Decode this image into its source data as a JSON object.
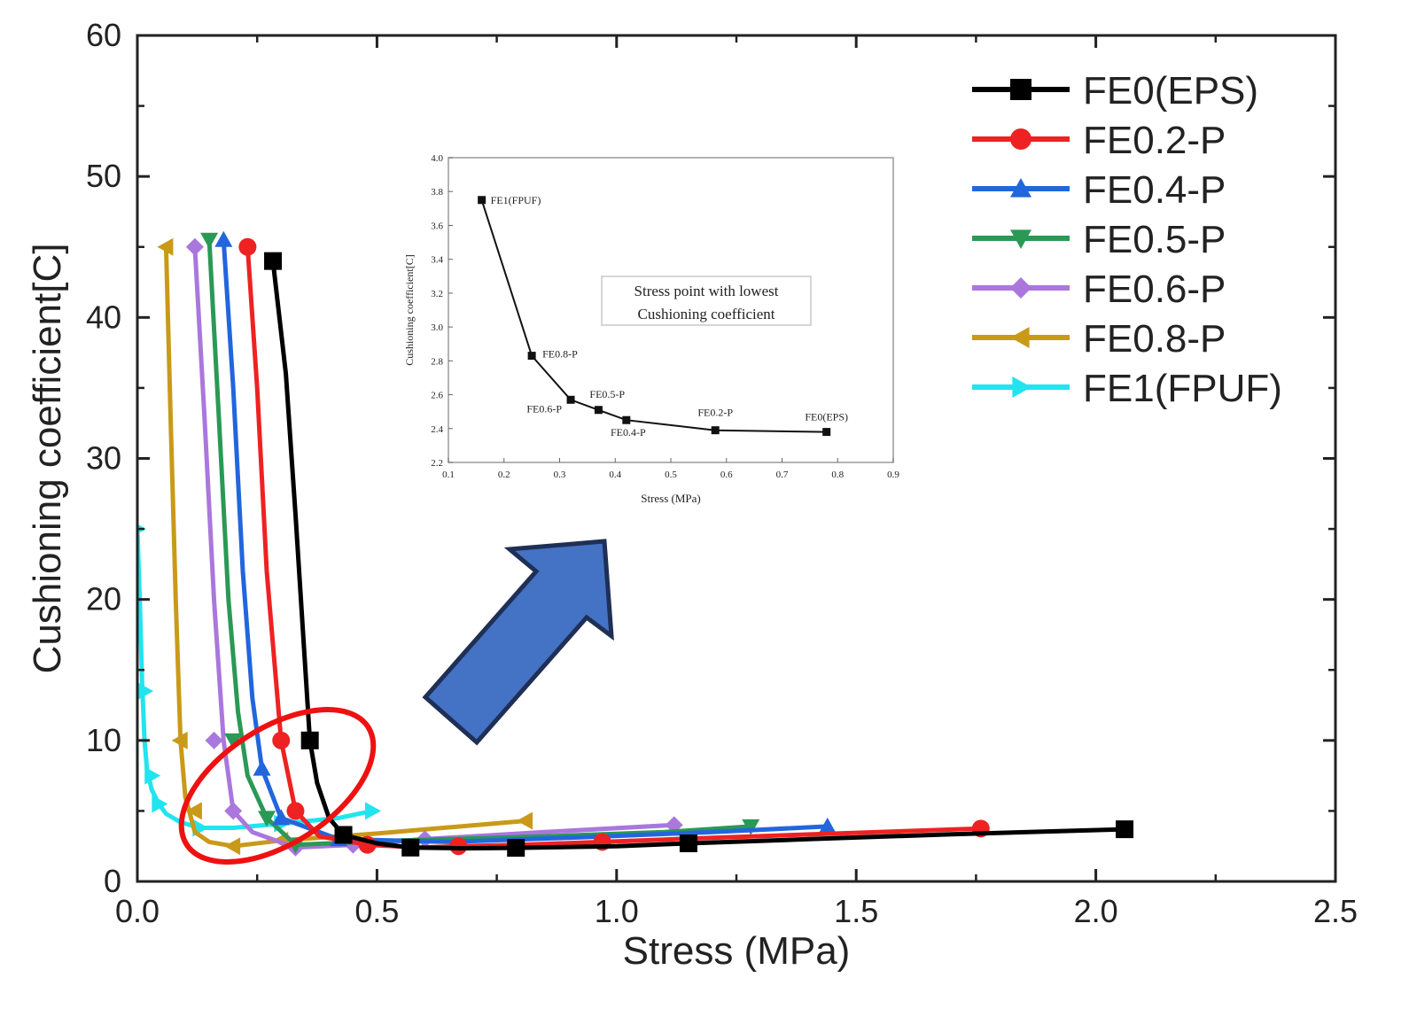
{
  "chart_data": [
    {
      "type": "line",
      "title": "",
      "xlabel": "Stress (MPa)",
      "ylabel": "Cushioning coefficient[C]",
      "xlim": [
        0.0,
        2.5
      ],
      "ylim": [
        0,
        60
      ],
      "xticks": [
        0.0,
        0.5,
        1.0,
        1.5,
        2.0,
        2.5
      ],
      "xtick_labels": [
        "0.0",
        "0.5",
        "1.0",
        "1.5",
        "2.0",
        "2.5"
      ],
      "yticks": [
        0,
        10,
        20,
        30,
        40,
        50,
        60
      ],
      "ytick_labels": [
        "0",
        "10",
        "20",
        "30",
        "40",
        "50",
        "60"
      ],
      "legend_position": "top-right",
      "series": [
        {
          "name": "FE0(EPS)",
          "color": "#000000",
          "marker": "square",
          "x": [
            0.283,
            0.31,
            0.33,
            0.345,
            0.36,
            0.375,
            0.4,
            0.43,
            0.5,
            0.57,
            0.68,
            0.79,
            1.0,
            1.15,
            1.4,
            1.7,
            2.06
          ],
          "y": [
            44,
            36,
            26,
            18,
            10,
            7,
            4.5,
            3.3,
            2.7,
            2.4,
            2.35,
            2.38,
            2.5,
            2.7,
            3.0,
            3.35,
            3.7
          ],
          "marker_x": [
            0.283,
            0.36,
            0.43,
            0.57,
            0.79,
            1.15,
            2.06
          ],
          "marker_y": [
            44,
            10,
            3.3,
            2.4,
            2.38,
            2.7,
            3.7
          ]
        },
        {
          "name": "FE0.2-P",
          "color": "#ee2222",
          "marker": "circle",
          "x": [
            0.23,
            0.25,
            0.27,
            0.29,
            0.3,
            0.33,
            0.38,
            0.48,
            0.59,
            0.67,
            0.8,
            0.97,
            1.2,
            1.5,
            1.76
          ],
          "y": [
            45,
            35,
            22,
            14,
            10,
            5,
            3.2,
            2.6,
            2.4,
            2.5,
            2.6,
            2.8,
            3.1,
            3.45,
            3.75
          ],
          "marker_x": [
            0.23,
            0.3,
            0.33,
            0.48,
            0.67,
            0.97,
            1.76
          ],
          "marker_y": [
            45,
            10,
            5,
            2.6,
            2.5,
            2.8,
            3.75
          ]
        },
        {
          "name": "FE0.4-P",
          "color": "#2266dd",
          "marker": "triangle-up",
          "x": [
            0.18,
            0.2,
            0.22,
            0.24,
            0.26,
            0.3,
            0.42,
            0.65,
            0.9,
            1.2,
            1.44
          ],
          "y": [
            45.5,
            35,
            22,
            13,
            8,
            4.5,
            3.0,
            2.8,
            3.1,
            3.5,
            3.9
          ],
          "marker_x": [
            0.18,
            0.26,
            0.3,
            0.42,
            1.44
          ],
          "marker_y": [
            45.5,
            8,
            4.5,
            3.0,
            3.9
          ],
          "marker_note": "only the first and last markers are unambiguous; intermediate marker positions are approximate"
        },
        {
          "name": "FE0.5-P",
          "color": "#2a9955",
          "marker": "triangle-down",
          "x": [
            0.15,
            0.17,
            0.19,
            0.21,
            0.23,
            0.27,
            0.33,
            0.55,
            0.85,
            1.1,
            1.28
          ],
          "y": [
            45.5,
            33,
            20,
            12,
            7.5,
            4.5,
            2.6,
            2.9,
            3.2,
            3.5,
            3.9
          ],
          "marker_x": [
            0.15,
            0.2,
            0.27,
            0.33,
            1.28
          ],
          "marker_y": [
            45.5,
            10,
            4.5,
            2.6,
            3.9
          ],
          "marker_note": "only the first and last markers are unambiguous; intermediate marker positions are approximate"
        },
        {
          "name": "FE0.6-P",
          "color": "#aa77dd",
          "marker": "diamond",
          "x": [
            0.12,
            0.14,
            0.16,
            0.18,
            0.2,
            0.24,
            0.33,
            0.45,
            0.6,
            0.85,
            1.12
          ],
          "y": [
            45,
            33,
            20,
            10,
            5,
            3.5,
            2.4,
            2.6,
            3.0,
            3.5,
            4.0
          ],
          "marker_x": [
            0.12,
            0.16,
            0.2,
            0.33,
            0.45,
            0.6,
            1.12
          ],
          "marker_y": [
            45,
            10,
            5,
            2.4,
            2.6,
            3.0,
            4.0
          ]
        },
        {
          "name": "FE0.8-P",
          "color": "#c99a18",
          "marker": "triangle-left",
          "x": [
            0.06,
            0.07,
            0.08,
            0.09,
            0.1,
            0.12,
            0.15,
            0.2,
            0.3,
            0.5,
            0.81
          ],
          "y": [
            45,
            32,
            20,
            10,
            6,
            3.5,
            2.8,
            2.5,
            2.9,
            3.4,
            4.3
          ],
          "marker_x": [
            0.06,
            0.09,
            0.12,
            0.2,
            0.3,
            0.81
          ],
          "marker_y": [
            45,
            10,
            5,
            2.5,
            2.9,
            4.3
          ]
        },
        {
          "name": "FE1(FPUF)",
          "color": "#22e4ee",
          "marker": "triangle-right",
          "x": [
            0.0,
            0.005,
            0.01,
            0.015,
            0.02,
            0.03,
            0.045,
            0.06,
            0.09,
            0.13,
            0.2,
            0.3,
            0.42,
            0.49
          ],
          "y": [
            25,
            20,
            14,
            10,
            8,
            6.5,
            5.5,
            4.8,
            4.2,
            3.8,
            3.8,
            4.1,
            4.5,
            5.0
          ],
          "marker_x": [
            0.0,
            0.015,
            0.03,
            0.045,
            0.13,
            0.3,
            0.49
          ],
          "marker_y": [
            25,
            13.5,
            7.5,
            5.5,
            3.8,
            4.1,
            5.0
          ]
        }
      ]
    },
    {
      "type": "scatter",
      "title": "",
      "xlabel": "Stress (MPa)",
      "ylabel": "Cushioning coefficient[C]",
      "xlim": [
        0.1,
        0.9
      ],
      "ylim": [
        2.2,
        4.0
      ],
      "xticks": [
        0.1,
        0.2,
        0.3,
        0.4,
        0.5,
        0.6,
        0.7,
        0.8,
        0.9
      ],
      "xtick_labels": [
        "0.1",
        "0.2",
        "0.3",
        "0.4",
        "0.5",
        "0.6",
        "0.7",
        "0.8",
        "0.9"
      ],
      "yticks": [
        2.2,
        2.4,
        2.6,
        2.8,
        3.0,
        3.2,
        3.4,
        3.6,
        3.8,
        4.0
      ],
      "ytick_labels": [
        "2.2",
        "2.4",
        "2.6",
        "2.8",
        "3.0",
        "3.2",
        "3.4",
        "3.6",
        "3.8",
        "4.0"
      ],
      "annotation": [
        "Stress point with lowest",
        "Cushioning coefficient"
      ],
      "points": [
        {
          "label": "FE1(FPUF)",
          "x": 0.16,
          "y": 3.75
        },
        {
          "label": "FE0.8-P",
          "x": 0.25,
          "y": 2.83
        },
        {
          "label": "FE0.6-P",
          "x": 0.32,
          "y": 2.57
        },
        {
          "label": "FE0.5-P",
          "x": 0.37,
          "y": 2.51
        },
        {
          "label": "FE0.4-P",
          "x": 0.42,
          "y": 2.45
        },
        {
          "label": "FE0.2-P",
          "x": 0.58,
          "y": 2.39
        },
        {
          "label": "FE0(EPS)",
          "x": 0.78,
          "y": 2.38
        }
      ]
    }
  ],
  "colors": {
    "arrow_fill": "#4472c4",
    "arrow_stroke": "#1f2f55",
    "highlight_ellipse": "#ee1111",
    "axis": "#222222",
    "inset_frame": "#b8b8b8"
  }
}
